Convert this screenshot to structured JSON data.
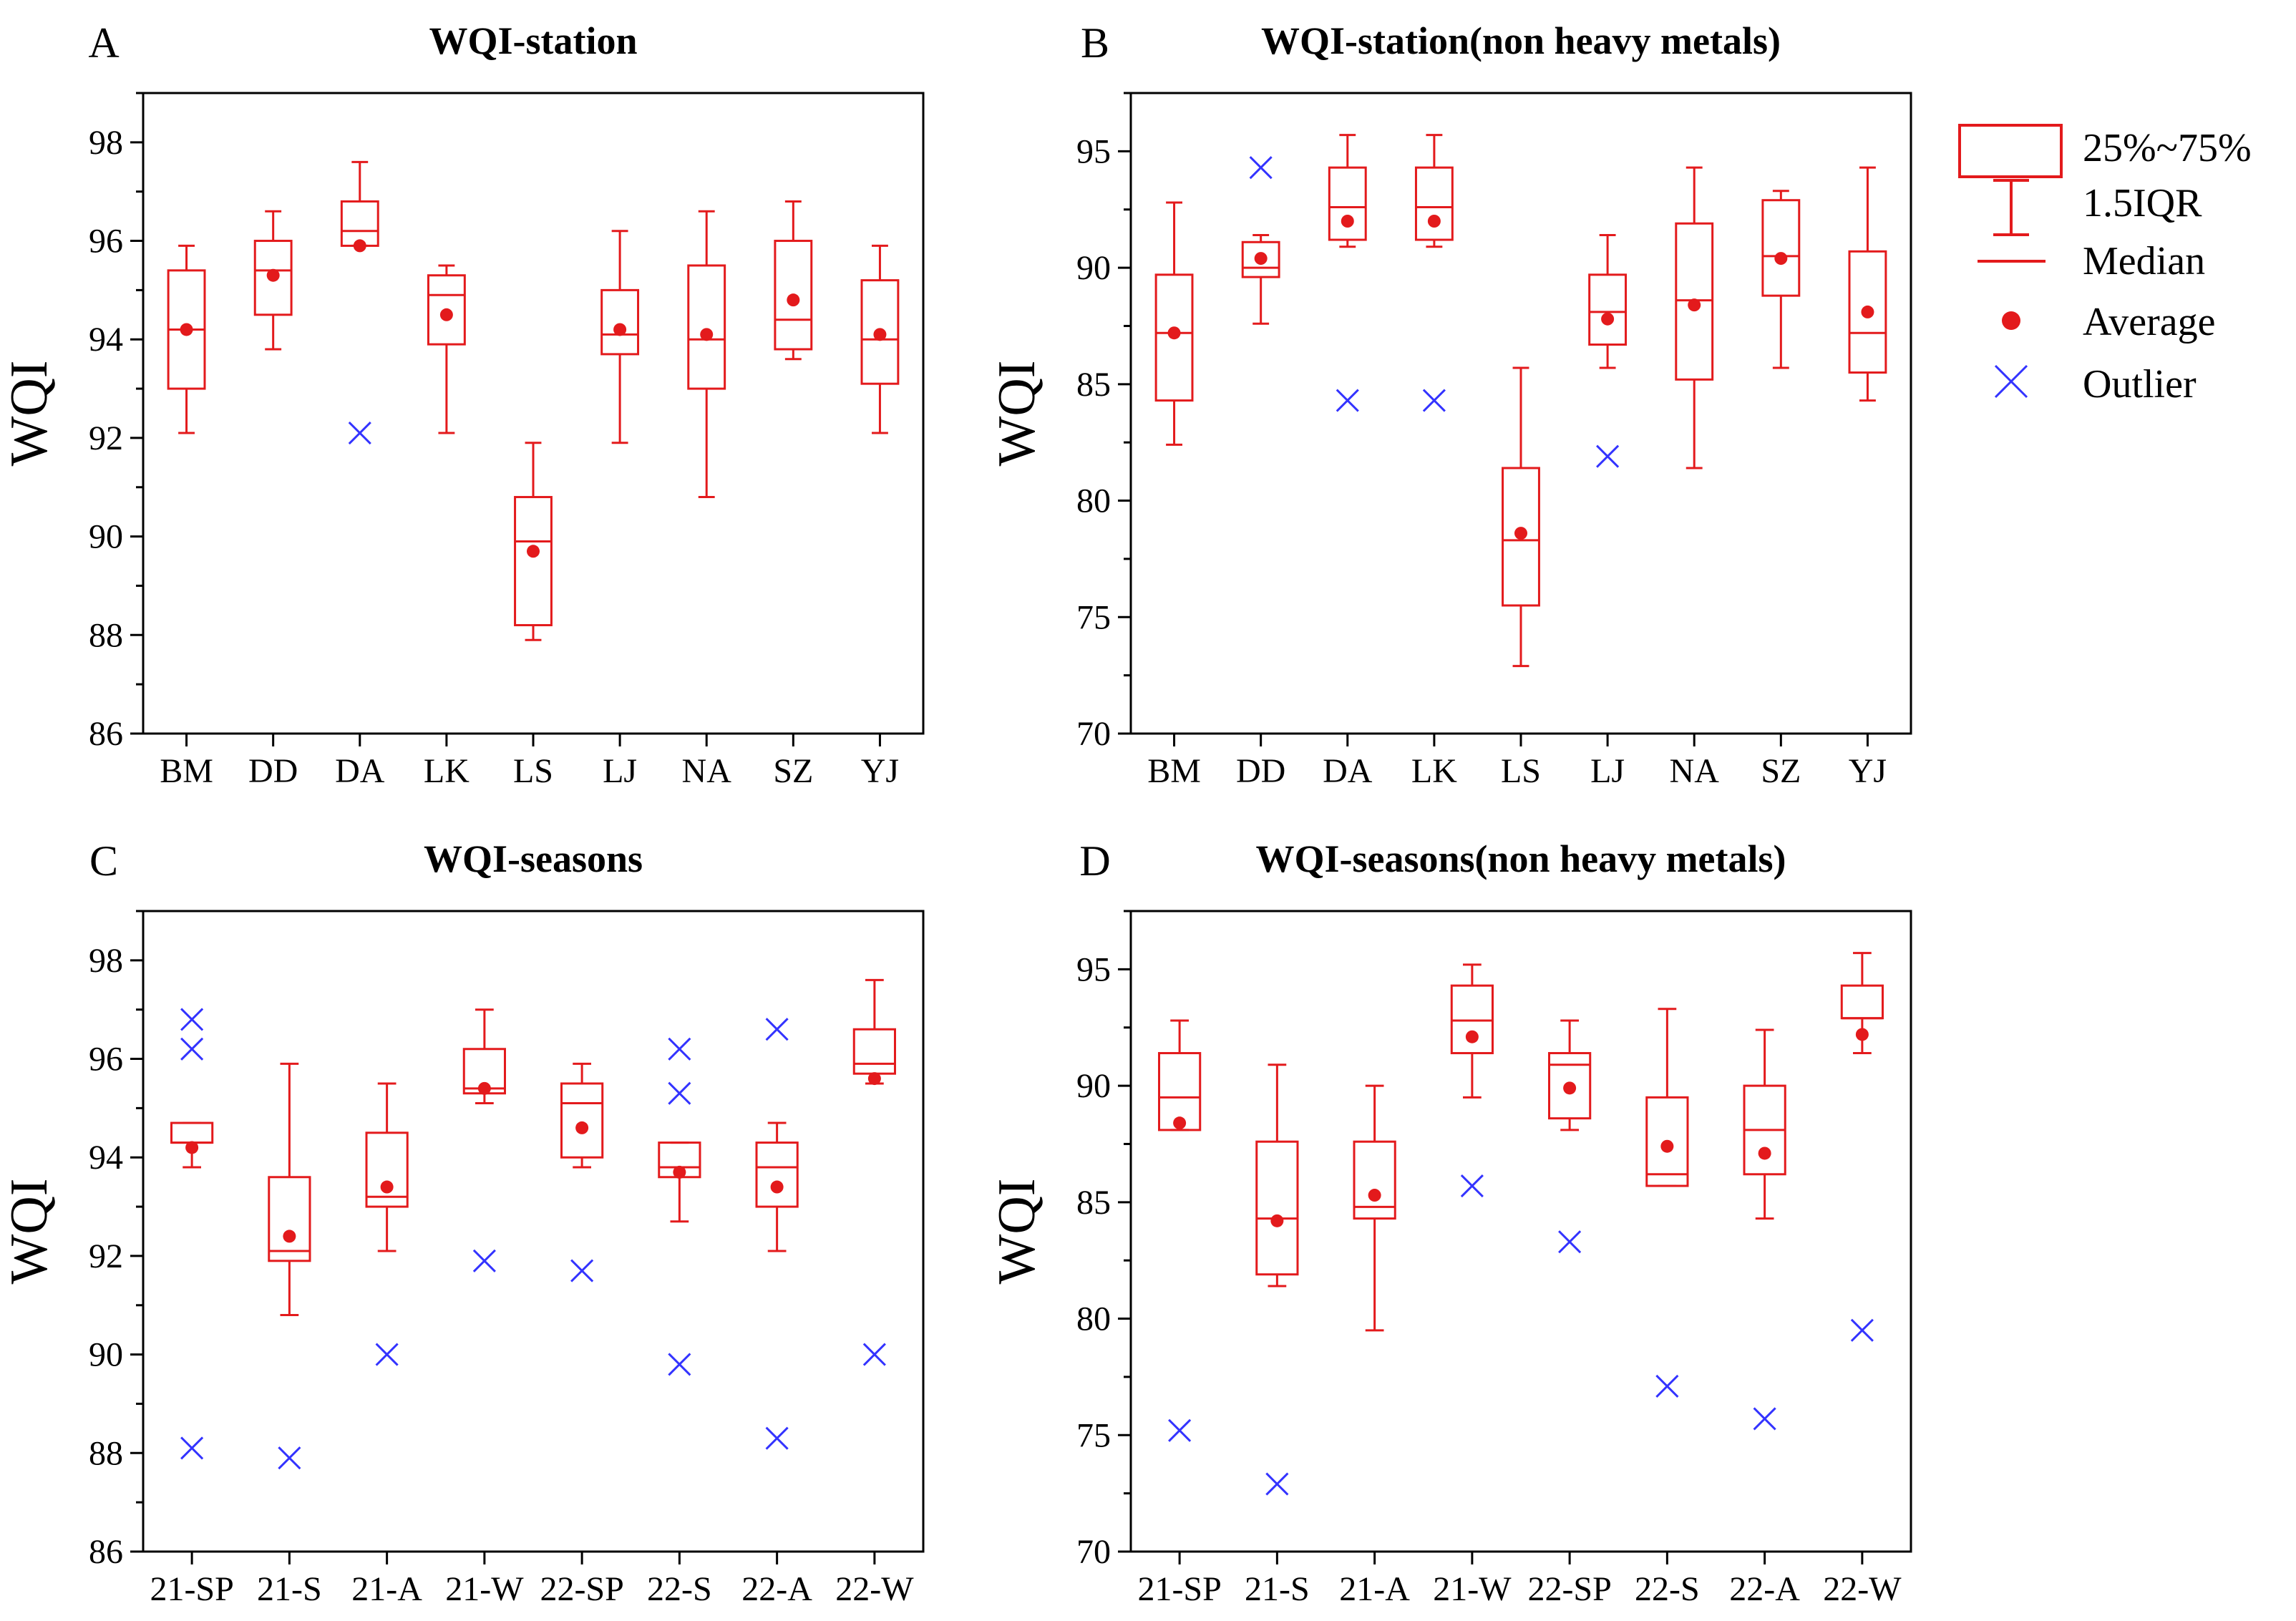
{
  "colors": {
    "box": "#e31a1c",
    "outlier": "#3333ff",
    "axis": "#000000"
  },
  "legend": {
    "items": [
      {
        "kind": "box",
        "label": "25%~75%"
      },
      {
        "kind": "whisker",
        "label": "1.5IQR"
      },
      {
        "kind": "median",
        "label": "Median"
      },
      {
        "kind": "mean",
        "label": "Average"
      },
      {
        "kind": "outlier",
        "label": "Outlier"
      }
    ]
  },
  "chart_data": [
    {
      "panel": "A",
      "type": "box",
      "title": "WQI-station",
      "ylabel": "WQI",
      "ylim": [
        86,
        99
      ],
      "yticks": [
        86,
        88,
        90,
        92,
        94,
        96,
        98
      ],
      "categories": [
        "BM",
        "DD",
        "DA",
        "LK",
        "LS",
        "LJ",
        "NA",
        "SZ",
        "YJ"
      ],
      "boxes": [
        {
          "min": 92.1,
          "q1": 93.0,
          "median": 94.2,
          "q3": 95.4,
          "max": 95.9,
          "mean": 94.2,
          "outliers": []
        },
        {
          "min": 93.8,
          "q1": 94.5,
          "median": 95.4,
          "q3": 96.0,
          "max": 96.6,
          "mean": 95.3,
          "outliers": []
        },
        {
          "min": 95.9,
          "q1": 95.9,
          "median": 96.2,
          "q3": 96.8,
          "max": 97.6,
          "mean": 95.9,
          "outliers": [
            92.1
          ]
        },
        {
          "min": 92.1,
          "q1": 93.9,
          "median": 94.9,
          "q3": 95.3,
          "max": 95.5,
          "mean": 94.5,
          "outliers": []
        },
        {
          "min": 87.9,
          "q1": 88.2,
          "median": 89.9,
          "q3": 90.8,
          "max": 91.9,
          "mean": 89.7,
          "outliers": []
        },
        {
          "min": 91.9,
          "q1": 93.7,
          "median": 94.1,
          "q3": 95.0,
          "max": 96.2,
          "mean": 94.2,
          "outliers": []
        },
        {
          "min": 90.8,
          "q1": 93.0,
          "median": 94.0,
          "q3": 95.5,
          "max": 96.6,
          "mean": 94.1,
          "outliers": []
        },
        {
          "min": 93.6,
          "q1": 93.8,
          "median": 94.4,
          "q3": 96.0,
          "max": 96.8,
          "mean": 94.8,
          "outliers": []
        },
        {
          "min": 92.1,
          "q1": 93.1,
          "median": 94.0,
          "q3": 95.2,
          "max": 95.9,
          "mean": 94.1,
          "outliers": []
        }
      ]
    },
    {
      "panel": "B",
      "type": "box",
      "title": "WQI-station(non heavy metals)",
      "ylabel": "WQI",
      "ylim": [
        70,
        97.5
      ],
      "yticks": [
        70,
        75,
        80,
        85,
        90,
        95
      ],
      "categories": [
        "BM",
        "DD",
        "DA",
        "LK",
        "LS",
        "LJ",
        "NA",
        "SZ",
        "YJ"
      ],
      "boxes": [
        {
          "min": 82.4,
          "q1": 84.3,
          "median": 87.2,
          "q3": 89.7,
          "max": 92.8,
          "mean": 87.2,
          "outliers": []
        },
        {
          "min": 87.6,
          "q1": 89.6,
          "median": 90.0,
          "q3": 91.1,
          "max": 91.4,
          "mean": 90.4,
          "outliers": [
            94.3
          ]
        },
        {
          "min": 90.9,
          "q1": 91.2,
          "median": 92.6,
          "q3": 94.3,
          "max": 95.7,
          "mean": 92.0,
          "outliers": [
            84.3
          ]
        },
        {
          "min": 90.9,
          "q1": 91.2,
          "median": 92.6,
          "q3": 94.3,
          "max": 95.7,
          "mean": 92.0,
          "outliers": [
            84.3
          ]
        },
        {
          "min": 72.9,
          "q1": 75.5,
          "median": 78.3,
          "q3": 81.4,
          "max": 85.7,
          "mean": 78.6,
          "outliers": []
        },
        {
          "min": 85.7,
          "q1": 86.7,
          "median": 88.1,
          "q3": 89.7,
          "max": 91.4,
          "mean": 87.8,
          "outliers": [
            81.9
          ]
        },
        {
          "min": 81.4,
          "q1": 85.2,
          "median": 88.6,
          "q3": 91.9,
          "max": 94.3,
          "mean": 88.4,
          "outliers": []
        },
        {
          "min": 85.7,
          "q1": 88.8,
          "median": 90.5,
          "q3": 92.9,
          "max": 93.3,
          "mean": 90.4,
          "outliers": []
        },
        {
          "min": 84.3,
          "q1": 85.5,
          "median": 87.2,
          "q3": 90.7,
          "max": 94.3,
          "mean": 88.1,
          "outliers": []
        }
      ]
    },
    {
      "panel": "C",
      "type": "box",
      "title": "WQI-seasons",
      "ylabel": "WQI",
      "ylim": [
        86,
        99
      ],
      "yticks": [
        86,
        88,
        90,
        92,
        94,
        96,
        98
      ],
      "categories": [
        "21-SP",
        "21-S",
        "21-A",
        "21-W",
        "22-SP",
        "22-S",
        "22-A",
        "22-W"
      ],
      "boxes": [
        {
          "min": 93.8,
          "q1": 94.3,
          "median": 94.3,
          "q3": 94.7,
          "max": 94.7,
          "mean": 94.2,
          "outliers": [
            96.8,
            96.2,
            88.1
          ]
        },
        {
          "min": 90.8,
          "q1": 91.9,
          "median": 92.1,
          "q3": 93.6,
          "max": 95.9,
          "mean": 92.4,
          "outliers": [
            87.9
          ]
        },
        {
          "min": 92.1,
          "q1": 93.0,
          "median": 93.2,
          "q3": 94.5,
          "max": 95.5,
          "mean": 93.4,
          "outliers": [
            90.0
          ]
        },
        {
          "min": 95.1,
          "q1": 95.3,
          "median": 95.4,
          "q3": 96.2,
          "max": 97.0,
          "mean": 95.4,
          "outliers": [
            91.9
          ]
        },
        {
          "min": 93.8,
          "q1": 94.0,
          "median": 95.1,
          "q3": 95.5,
          "max": 95.9,
          "mean": 94.6,
          "outliers": [
            91.7
          ]
        },
        {
          "min": 92.7,
          "q1": 93.6,
          "median": 93.8,
          "q3": 94.3,
          "max": 94.3,
          "mean": 93.7,
          "outliers": [
            96.2,
            95.3,
            89.8
          ]
        },
        {
          "min": 92.1,
          "q1": 93.0,
          "median": 93.8,
          "q3": 94.3,
          "max": 94.7,
          "mean": 93.4,
          "outliers": [
            96.6,
            88.3
          ]
        },
        {
          "min": 95.5,
          "q1": 95.7,
          "median": 95.9,
          "q3": 96.6,
          "max": 97.6,
          "mean": 95.6,
          "outliers": [
            90.0
          ]
        }
      ]
    },
    {
      "panel": "D",
      "type": "box",
      "title": "WQI-seasons(non heavy metals)",
      "ylabel": "WQI",
      "ylim": [
        70,
        97.5
      ],
      "yticks": [
        70,
        75,
        80,
        85,
        90,
        95
      ],
      "categories": [
        "21-SP",
        "21-S",
        "21-A",
        "21-W",
        "22-SP",
        "22-S",
        "22-A",
        "22-W"
      ],
      "boxes": [
        {
          "min": 88.1,
          "q1": 88.1,
          "median": 89.5,
          "q3": 91.4,
          "max": 92.8,
          "mean": 88.4,
          "outliers": [
            75.2
          ]
        },
        {
          "min": 81.4,
          "q1": 81.9,
          "median": 84.3,
          "q3": 87.6,
          "max": 90.9,
          "mean": 84.2,
          "outliers": [
            72.9
          ]
        },
        {
          "min": 79.5,
          "q1": 84.3,
          "median": 84.8,
          "q3": 87.6,
          "max": 90.0,
          "mean": 85.3,
          "outliers": []
        },
        {
          "min": 89.5,
          "q1": 91.4,
          "median": 92.8,
          "q3": 94.3,
          "max": 95.2,
          "mean": 92.1,
          "outliers": [
            85.7
          ]
        },
        {
          "min": 88.1,
          "q1": 88.6,
          "median": 90.9,
          "q3": 91.4,
          "max": 92.8,
          "mean": 89.9,
          "outliers": [
            83.3
          ]
        },
        {
          "min": 85.7,
          "q1": 85.7,
          "median": 86.2,
          "q3": 89.5,
          "max": 93.3,
          "mean": 87.4,
          "outliers": [
            77.1
          ]
        },
        {
          "min": 84.3,
          "q1": 86.2,
          "median": 88.1,
          "q3": 90.0,
          "max": 92.4,
          "mean": 87.1,
          "outliers": [
            75.7
          ]
        },
        {
          "min": 91.4,
          "q1": 92.9,
          "median": 92.9,
          "q3": 94.3,
          "max": 95.7,
          "mean": 92.2,
          "outliers": [
            79.5
          ]
        }
      ]
    }
  ]
}
